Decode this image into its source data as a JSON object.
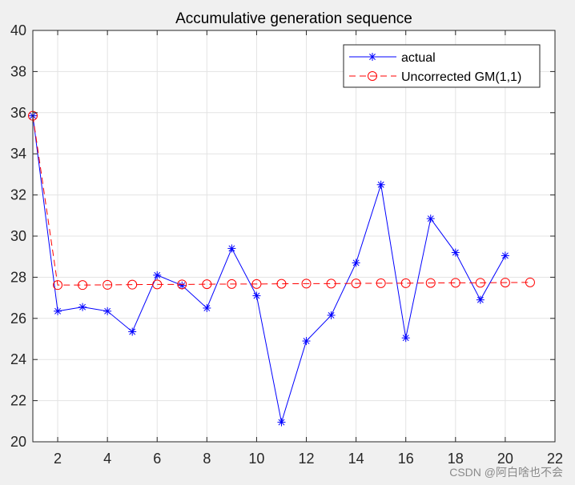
{
  "chart_data": {
    "type": "line",
    "title": "Accumulative generation sequence",
    "xlabel": "",
    "ylabel": "",
    "xlim": [
      1,
      22
    ],
    "ylim": [
      20,
      40
    ],
    "x_ticks": [
      2,
      4,
      6,
      8,
      10,
      12,
      14,
      16,
      18,
      20,
      22
    ],
    "y_ticks": [
      20,
      22,
      24,
      26,
      28,
      30,
      32,
      34,
      36,
      38,
      40
    ],
    "grid": true,
    "legend_position": "top-right",
    "series": [
      {
        "name": "actual",
        "color": "#0000ff",
        "line_style": "solid",
        "marker": "asterisk",
        "x": [
          1,
          2,
          3,
          4,
          5,
          6,
          7,
          8,
          9,
          10,
          11,
          12,
          13,
          14,
          15,
          16,
          17,
          18,
          19,
          20
        ],
        "values": [
          35.85,
          26.35,
          26.55,
          26.35,
          25.35,
          28.1,
          27.6,
          26.5,
          29.4,
          27.1,
          20.95,
          24.9,
          26.15,
          28.7,
          32.5,
          25.05,
          30.85,
          29.2,
          26.9,
          29.05
        ]
      },
      {
        "name": "Uncorrected GM(1,1)",
        "color": "#ff0000",
        "line_style": "dashed",
        "marker": "circle",
        "x": [
          1,
          2,
          3,
          4,
          5,
          6,
          7,
          8,
          9,
          10,
          11,
          12,
          13,
          14,
          15,
          16,
          17,
          18,
          19,
          20,
          21
        ],
        "values": [
          35.85,
          27.62,
          27.62,
          27.63,
          27.64,
          27.65,
          27.65,
          27.66,
          27.67,
          27.67,
          27.68,
          27.69,
          27.69,
          27.7,
          27.71,
          27.71,
          27.72,
          27.73,
          27.73,
          27.74,
          27.75
        ]
      }
    ]
  },
  "watermark": "CSDN @阿白啥也不会"
}
